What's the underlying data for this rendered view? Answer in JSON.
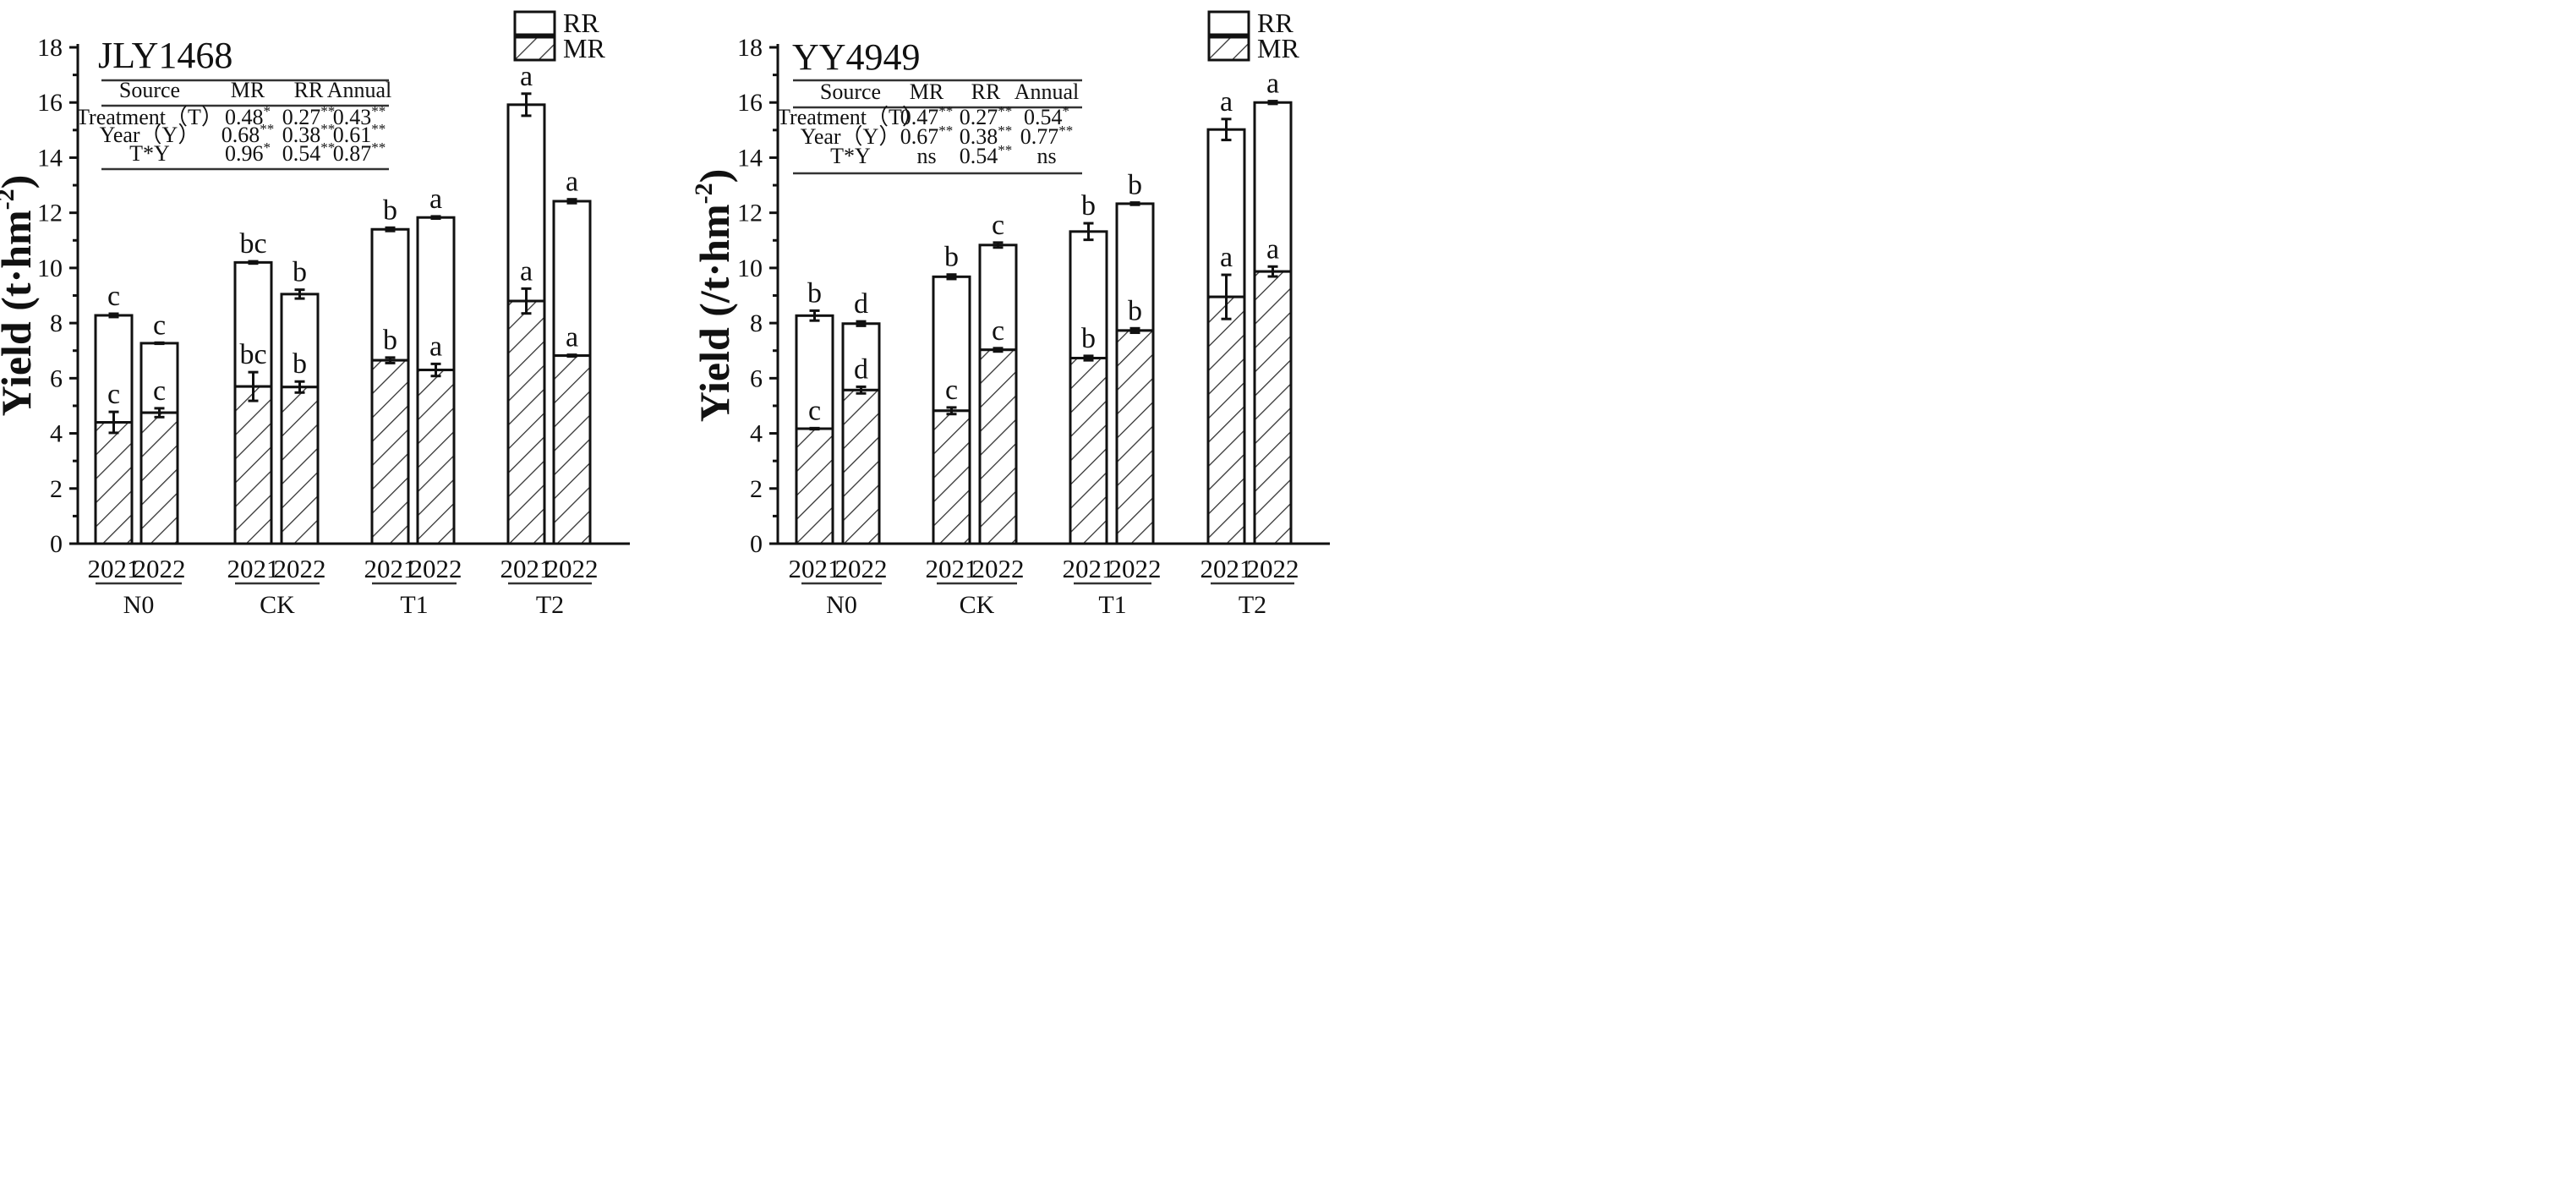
{
  "chart_data": [
    {
      "type": "bar",
      "stacked": true,
      "title": "JLY1468",
      "ylabel": "Yield (t·hm⁻²)",
      "ylim": [
        0,
        18
      ],
      "yticks": [
        0,
        2,
        4,
        6,
        8,
        10,
        12,
        14,
        16,
        18
      ],
      "groups": [
        "N0",
        "CK",
        "T1",
        "T2"
      ],
      "categories": [
        "2021",
        "2022",
        "2021",
        "2022",
        "2021",
        "2022",
        "2021",
        "2022"
      ],
      "series": [
        {
          "name": "MR",
          "pattern": "hatch",
          "values": [
            4.4,
            4.75,
            5.7,
            5.68,
            6.65,
            6.3,
            8.8,
            6.82
          ],
          "errors": [
            0.38,
            0.16,
            0.52,
            0.2,
            0.1,
            0.22,
            0.45,
            0.03
          ],
          "letters": [
            "c",
            "c",
            "bc",
            "b",
            "b",
            "a",
            "a",
            "a"
          ]
        },
        {
          "name": "RR",
          "pattern": "white",
          "values": [
            3.88,
            2.52,
            4.5,
            3.37,
            4.75,
            5.53,
            7.12,
            5.6
          ],
          "totals": [
            8.28,
            7.27,
            10.2,
            9.05,
            11.4,
            11.83,
            15.92,
            12.42
          ],
          "errors": [
            0.06,
            0.02,
            0.04,
            0.16,
            0.06,
            0.04,
            0.4,
            0.07
          ],
          "letters": [
            "c",
            "c",
            "bc",
            "b",
            "b",
            "a",
            "a",
            "a"
          ]
        }
      ],
      "legend": [
        "RR",
        "MR"
      ],
      "legend_position": "top-right",
      "stats_table": {
        "headers": [
          "Source",
          "MR",
          "RR",
          "Annual"
        ],
        "rows": [
          [
            "Treatment（T）",
            "0.48*",
            "0.27**",
            "0.43**"
          ],
          [
            "Year（Y）",
            "0.68**",
            "0.38**",
            "0.61**"
          ],
          [
            "T*Y",
            "0.96*",
            "0.54**",
            "0.87**"
          ]
        ]
      }
    },
    {
      "type": "bar",
      "stacked": true,
      "title": "YY4949",
      "ylabel": "Yield (/t·hm⁻²)",
      "ylim": [
        0,
        18
      ],
      "yticks": [
        0,
        2,
        4,
        6,
        8,
        10,
        12,
        14,
        16,
        18
      ],
      "groups": [
        "N0",
        "CK",
        "T1",
        "T2"
      ],
      "categories": [
        "2021",
        "2022",
        "2021",
        "2022",
        "2021",
        "2022",
        "2021",
        "2022"
      ],
      "series": [
        {
          "name": "MR",
          "pattern": "hatch",
          "values": [
            4.17,
            5.57,
            4.82,
            7.03,
            6.73,
            7.73,
            8.95,
            9.87
          ],
          "errors": [
            0.02,
            0.12,
            0.12,
            0.06,
            0.08,
            0.08,
            0.8,
            0.18
          ],
          "letters": [
            "c",
            "d",
            "c",
            "c",
            "b",
            "b",
            "a",
            "a"
          ]
        },
        {
          "name": "RR",
          "pattern": "white",
          "values": [
            4.1,
            2.41,
            4.86,
            3.8,
            4.59,
            4.6,
            6.07,
            6.13
          ],
          "totals": [
            8.27,
            7.98,
            9.68,
            10.83,
            11.32,
            12.33,
            15.02,
            16.0
          ],
          "errors": [
            0.18,
            0.08,
            0.08,
            0.09,
            0.3,
            0.04,
            0.38,
            0.05
          ],
          "letters": [
            "b",
            "d",
            "b",
            "c",
            "b",
            "b",
            "a",
            "a"
          ]
        }
      ],
      "legend": [
        "RR",
        "MR"
      ],
      "legend_position": "top-right",
      "stats_table": {
        "headers": [
          "Source",
          "MR",
          "RR",
          "Annual"
        ],
        "rows": [
          [
            "Treatment（T）",
            "0.47**",
            "0.27**",
            "0.54*"
          ],
          [
            "Year（Y）",
            "0.67**",
            "0.38**",
            "0.77**"
          ],
          [
            "T*Y",
            "ns",
            "0.54**",
            "ns"
          ]
        ]
      }
    }
  ]
}
